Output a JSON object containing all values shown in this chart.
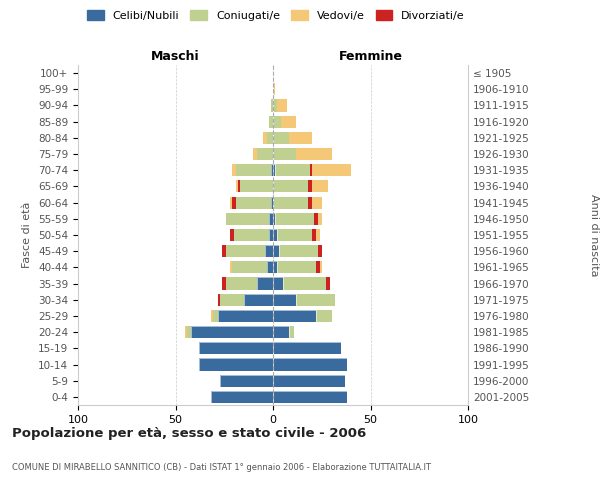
{
  "age_groups": [
    "0-4",
    "5-9",
    "10-14",
    "15-19",
    "20-24",
    "25-29",
    "30-34",
    "35-39",
    "40-44",
    "45-49",
    "50-54",
    "55-59",
    "60-64",
    "65-69",
    "70-74",
    "75-79",
    "80-84",
    "85-89",
    "90-94",
    "95-99",
    "100+"
  ],
  "birth_years": [
    "2001-2005",
    "1996-2000",
    "1991-1995",
    "1986-1990",
    "1981-1985",
    "1976-1980",
    "1971-1975",
    "1966-1970",
    "1961-1965",
    "1956-1960",
    "1951-1955",
    "1946-1950",
    "1941-1945",
    "1936-1940",
    "1931-1935",
    "1926-1930",
    "1921-1925",
    "1916-1920",
    "1911-1915",
    "1906-1910",
    "≤ 1905"
  ],
  "male": {
    "celibi": [
      32,
      27,
      38,
      38,
      42,
      28,
      15,
      8,
      3,
      4,
      2,
      2,
      1,
      0,
      1,
      0,
      0,
      0,
      0,
      0,
      0
    ],
    "coniugati": [
      0,
      0,
      0,
      0,
      2,
      3,
      12,
      16,
      18,
      20,
      18,
      22,
      18,
      17,
      18,
      8,
      3,
      2,
      1,
      0,
      0
    ],
    "vedovi": [
      0,
      0,
      0,
      0,
      1,
      1,
      0,
      0,
      1,
      0,
      0,
      0,
      1,
      1,
      2,
      2,
      2,
      0,
      0,
      0,
      0
    ],
    "divorziati": [
      0,
      0,
      0,
      0,
      0,
      0,
      1,
      2,
      0,
      2,
      2,
      0,
      2,
      1,
      0,
      0,
      0,
      0,
      0,
      0,
      0
    ]
  },
  "female": {
    "nubili": [
      38,
      37,
      38,
      35,
      8,
      22,
      12,
      5,
      2,
      3,
      2,
      1,
      0,
      0,
      1,
      0,
      0,
      0,
      0,
      0,
      0
    ],
    "coniugate": [
      0,
      0,
      0,
      0,
      3,
      8,
      20,
      22,
      20,
      20,
      18,
      20,
      18,
      18,
      18,
      12,
      8,
      4,
      2,
      0,
      0
    ],
    "vedove": [
      0,
      0,
      0,
      0,
      0,
      0,
      0,
      0,
      1,
      0,
      2,
      2,
      5,
      8,
      20,
      18,
      12,
      8,
      5,
      1,
      0
    ],
    "divorziate": [
      0,
      0,
      0,
      0,
      0,
      0,
      0,
      2,
      2,
      2,
      2,
      2,
      2,
      2,
      1,
      0,
      0,
      0,
      0,
      0,
      0
    ]
  },
  "colors": {
    "celibi": "#3a6b9f",
    "coniugati": "#c0d090",
    "vedovi": "#f5c878",
    "divorziati": "#cc2222"
  },
  "title": "Popolazione per età, sesso e stato civile - 2006",
  "subtitle": "COMUNE DI MIRABELLO SANNITICO (CB) - Dati ISTAT 1° gennaio 2006 - Elaborazione TUTTAITALIA.IT",
  "label_maschi": "Maschi",
  "label_femmine": "Femmine",
  "ylabel_left": "Fasce di età",
  "ylabel_right": "Anni di nascita",
  "xlim": 100,
  "bg_color": "#ffffff",
  "grid_color": "#cccccc",
  "legend_labels": [
    "Celibi/Nubili",
    "Coniugati/e",
    "Vedovi/e",
    "Divorziati/e"
  ]
}
